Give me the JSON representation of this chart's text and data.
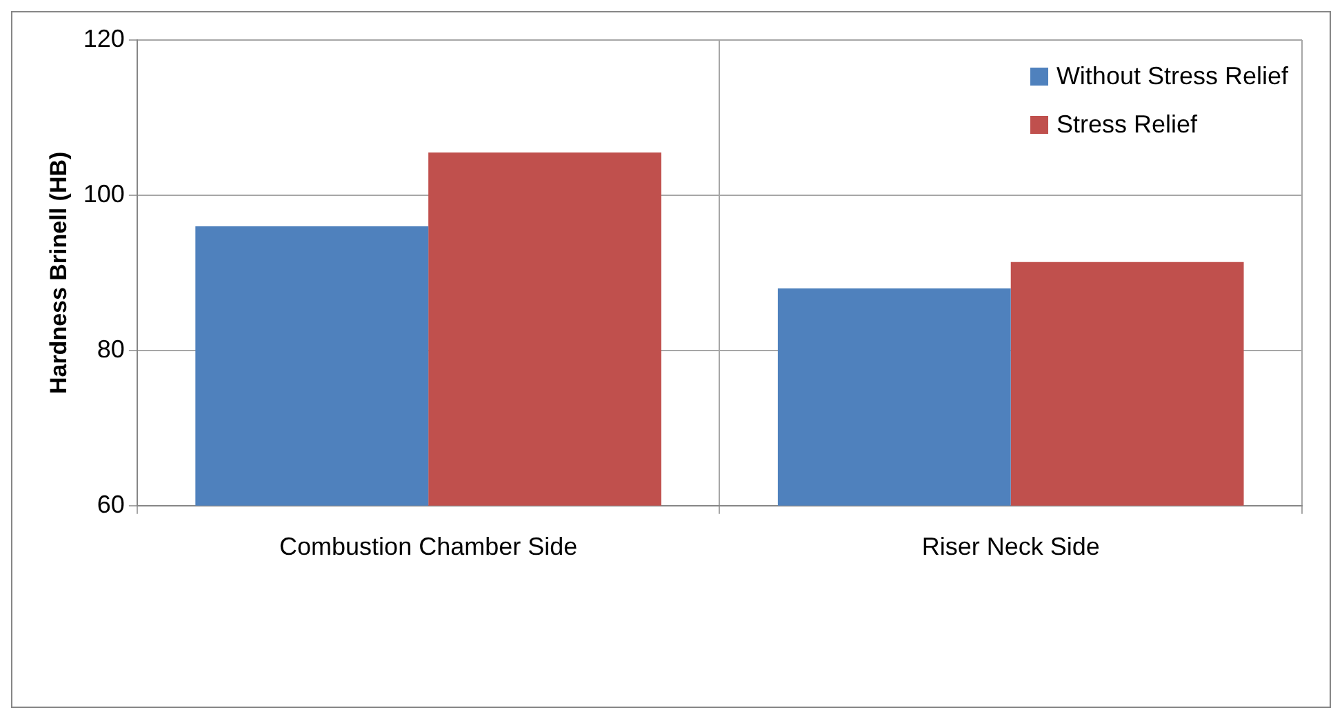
{
  "chart_data": {
    "type": "bar",
    "ylabel": "Hardness Brinell (HB)",
    "categories": [
      "Combustion Chamber Side",
      "Riser Neck Side"
    ],
    "series": [
      {
        "name": "Without Stress Relief",
        "color": "#4f81bd",
        "values": [
          96,
          88
        ]
      },
      {
        "name": "Stress Relief",
        "color": "#c0504d",
        "values": [
          105.5,
          91.4
        ]
      }
    ],
    "ylim": [
      60,
      120
    ],
    "yticks": [
      60,
      80,
      100,
      120
    ],
    "grid": true,
    "legend": "top right"
  }
}
